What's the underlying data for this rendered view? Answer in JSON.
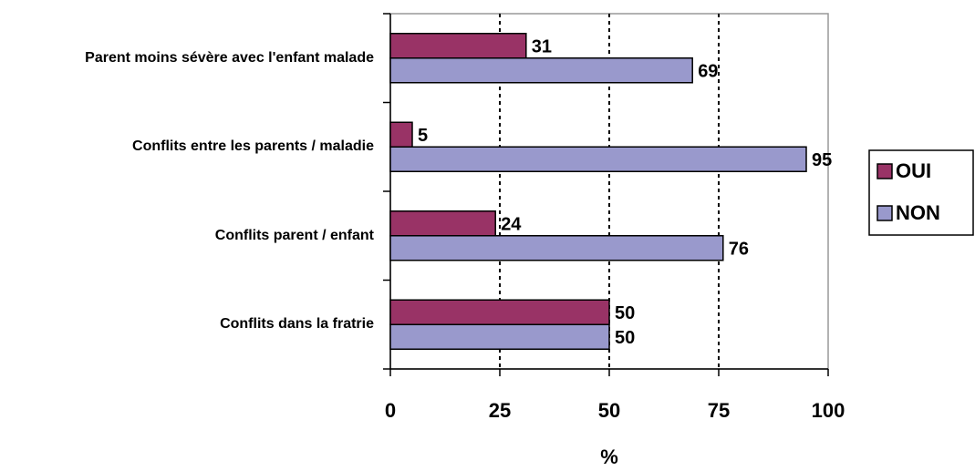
{
  "chart_data": {
    "type": "bar",
    "orientation": "horizontal",
    "categories": [
      "Parent moins sévère avec l'enfant malade",
      "Conflits entre les parents / maladie",
      "Conflits parent / enfant",
      "Conflits dans la fratrie"
    ],
    "series": [
      {
        "name": "OUI",
        "color": "#993366",
        "values": [
          31,
          5,
          24,
          50
        ]
      },
      {
        "name": "NON",
        "color": "#9999cc",
        "values": [
          69,
          95,
          76,
          50
        ]
      }
    ],
    "xlim": [
      0,
      100
    ],
    "xticks": [
      0,
      25,
      50,
      75,
      100
    ],
    "xlabel": "%",
    "grid": true,
    "legend": "right"
  }
}
